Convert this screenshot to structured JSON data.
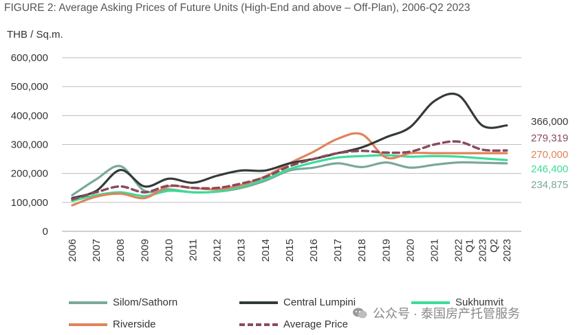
{
  "title": "FIGURE 2: Average Asking Prices of Future Units (High-End and above – Off-Plan), 2006-Q2 2023",
  "watermark": "公众号 · 泰国房产托管服务",
  "chart_data": {
    "type": "line",
    "title": "FIGURE 2: Average Asking Prices of Future Units (High-End and above – Off-Plan), 2006-Q2 2023",
    "ylabel": "THB / Sq.m.",
    "xlabel": "",
    "ylim": [
      0,
      600000
    ],
    "yticks": [
      0,
      100000,
      200000,
      300000,
      400000,
      500000,
      600000
    ],
    "ytick_labels": [
      "0",
      "100,000",
      "200,000",
      "300,000",
      "400,000",
      "500,000",
      "600,000"
    ],
    "categories": [
      "2006",
      "2007",
      "2008",
      "2009",
      "2010",
      "2011",
      "2012",
      "2013",
      "2014",
      "2015",
      "2016",
      "2017",
      "2018",
      "2019",
      "2020",
      "2021",
      "2022",
      "Q1 2023",
      "Q2 2023"
    ],
    "grid": true,
    "legend_position": "bottom",
    "series": [
      {
        "name": "Silom/Sathorn",
        "color": "#7aa89b",
        "dash": false,
        "values": [
          125000,
          180000,
          225000,
          140000,
          145000,
          135000,
          137000,
          150000,
          175000,
          210000,
          220000,
          235000,
          222000,
          238000,
          220000,
          230000,
          238000,
          237000,
          234875
        ],
        "end_label": "234,875"
      },
      {
        "name": "Central Lumpini",
        "color": "#333b38",
        "dash": false,
        "values": [
          115000,
          140000,
          212000,
          155000,
          182000,
          168000,
          192000,
          210000,
          210000,
          235000,
          250000,
          270000,
          290000,
          325000,
          360000,
          450000,
          470000,
          365000,
          366000
        ],
        "end_label": "366,000"
      },
      {
        "name": "Sukhumvit",
        "color": "#3ddc97",
        "dash": false,
        "values": [
          105000,
          125000,
          135000,
          122000,
          140000,
          135000,
          137000,
          155000,
          180000,
          215000,
          238000,
          255000,
          260000,
          263000,
          258000,
          260000,
          258000,
          252000,
          246400
        ],
        "end_label": "246,400"
      },
      {
        "name": "Riverside",
        "color": "#e0835a",
        "dash": false,
        "values": [
          90000,
          120000,
          130000,
          115000,
          155000,
          150000,
          145000,
          160000,
          190000,
          235000,
          275000,
          320000,
          335000,
          255000,
          270000,
          270000,
          270000,
          270000,
          270000
        ],
        "end_label": "270,000"
      },
      {
        "name": "Average Price",
        "color": "#8a4a5e",
        "dash": true,
        "values": [
          110000,
          135000,
          155000,
          135000,
          158000,
          150000,
          150000,
          165000,
          188000,
          225000,
          250000,
          270000,
          278000,
          272000,
          275000,
          300000,
          310000,
          282000,
          279319
        ],
        "end_label": "279,319"
      }
    ]
  }
}
